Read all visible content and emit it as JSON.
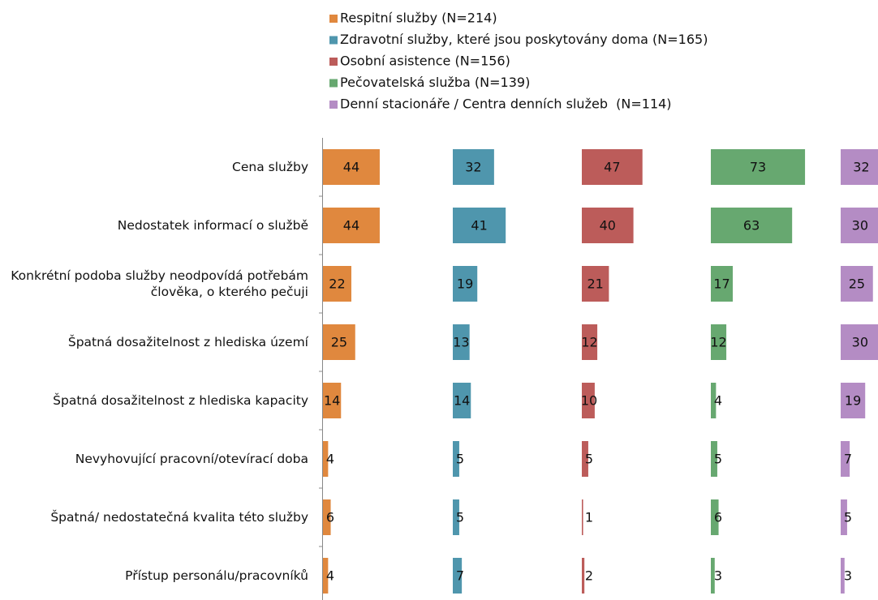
{
  "chart_data": {
    "type": "bar",
    "orientation": "horizontal",
    "categories": [
      "Cena služby",
      "Nedostatek informací o službě",
      "Konkrétní podoba služby neodpovídá potřebám člověka, o kterého pečuji",
      "Špatná dosažitelnost z hlediska území",
      "Špatná dosažitelnost z hlediska kapacity",
      "Nevyhovující pracovní/otevírací doba",
      "Špatná/ nedostatečná kvalita této služby",
      "Přístup personálu/pracovníků"
    ],
    "series": [
      {
        "name": "Respitní služby (N=214)",
        "color": "#e0883e",
        "values": [
          44,
          44,
          22,
          25,
          14,
          4,
          6,
          4
        ]
      },
      {
        "name": "Zdravotní služby, které jsou poskytovány doma (N=165)",
        "color": "#4f96ad",
        "values": [
          32,
          41,
          19,
          13,
          14,
          5,
          5,
          7
        ]
      },
      {
        "name": "Osobní asistence (N=156)",
        "color": "#bc5c5a",
        "values": [
          47,
          40,
          21,
          12,
          10,
          5,
          1,
          2
        ]
      },
      {
        "name": "Pečovatelská služba (N=139)",
        "color": "#67a870",
        "values": [
          73,
          63,
          17,
          12,
          4,
          5,
          6,
          3
        ]
      },
      {
        "name": "Denní stacionáře / Centra denních služeb  (N=114)",
        "color": "#b48cc4",
        "values": [
          32,
          30,
          25,
          30,
          19,
          7,
          5,
          3
        ]
      }
    ],
    "xlim": [
      0,
      100
    ]
  }
}
